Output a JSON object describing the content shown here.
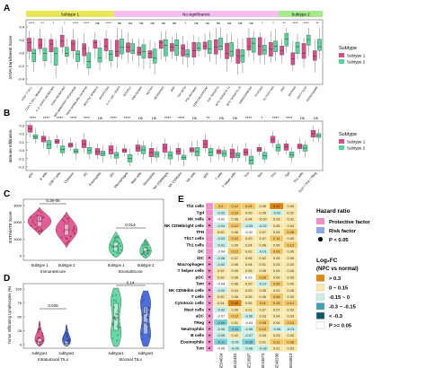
{
  "panels": {
    "A": {
      "label": "A",
      "ylabel": "GSVA Enrichment Score",
      "yticks": [
        "0.4",
        "0.2",
        "0.0",
        "-0.2",
        "-0.4"
      ],
      "bands": [
        "Subtype 1",
        "No significance",
        "Subtype 2"
      ],
      "band_colors": [
        "#e8e857",
        "#f4bef0",
        "#a7ea8e"
      ],
      "sig": [
        "****",
        "**",
        "*",
        "*",
        "****",
        "****",
        "ns",
        "****",
        "ns",
        "ns",
        "ns",
        "ns",
        "ns",
        "ns",
        "*",
        "ns",
        "ns",
        "ns",
        "ns",
        "ns",
        "ns",
        "*",
        "*",
        "**",
        "****",
        "****",
        "**"
      ],
      "categories": [
        "CD8+ T CELL",
        "CD4+ T CELL MEMORY",
        "IL-2 / STAT5 SIGNALING",
        "KRAS SIGNALING",
        "INFLAMMATORY RESPONSE",
        "TNFA SIGNALING VIA NFKB",
        "MITOTIC SPINDLE",
        "APOPTOSIS",
        "IL-6 / JAK / STAT3",
        "MTORC1",
        "DNA REPAIR",
        "NOTCH",
        "HEDGEHOG",
        "WNT",
        "TGF-BETA",
        "P53 PATHWAY",
        "G2M CHECKPOINT",
        "E2F TARGETS",
        "MYC TARGETS V1",
        "MYC TARGETS V2",
        "ANGIOGENESIS",
        "HYPOXIA",
        "GLYCOLYSIS",
        "EMT",
        "OXPHOS",
        "FATTY ACID",
        "PEROXISOME"
      ],
      "legend_title": "Subtype",
      "legend": [
        "Subtype 1",
        "Subtype 2"
      ]
    },
    "B": {
      "label": "B",
      "ylabel": "Immune Infiltration",
      "yticks": [
        "0.3",
        "0.2",
        "0.1",
        "0.0",
        "-0.1",
        "-0.2"
      ],
      "sig": [
        "****",
        "****",
        "****",
        "****",
        "****",
        "ns",
        "****",
        "****",
        "ns",
        "ns",
        "****",
        "****",
        "ns",
        "**",
        "ns",
        "ns",
        "****",
        "*",
        "****",
        "****",
        "ns",
        "ns"
      ],
      "categories": [
        "aDC",
        "B cells",
        "CD8 T cells",
        "Cytotoxic",
        "DC",
        "Eosinophils",
        "iDC",
        "Macrophages",
        "Mast cells",
        "Neutrophils",
        "NK CD56bright",
        "NK CD56dim",
        "NK cells",
        "pDC",
        "T cells",
        "T helper cells",
        "Tcm",
        "Tem",
        "TFH",
        "Tgd",
        "Th1 cells",
        "Th17 / Th2 / TReg"
      ],
      "legend_title": "Subtype",
      "legend": [
        "Subtype 1",
        "Subtype 2"
      ]
    },
    "C": {
      "label": "C",
      "ylabel": "ESTIMATE Score",
      "yticks": [
        "3000",
        "2000",
        "1000",
        "0"
      ],
      "pvals": [
        "5.3e-06",
        "0.014"
      ],
      "xticks": [
        "Subtype 1",
        "Subtype 2",
        "Subtype 1",
        "Subtype 2"
      ],
      "groups": [
        "ImmuneScore",
        "StromalScore"
      ]
    },
    "D": {
      "label": "D",
      "ylabel": "Tumor Infiltrating Lymphocytes (%)",
      "yticks": [
        "100",
        "75",
        "50",
        "25",
        "0"
      ],
      "pvals": [
        "0.025",
        "0.14"
      ],
      "xticks": [
        "subtype1",
        "subtype2",
        "subtype1",
        "subtype2"
      ],
      "groups": [
        "Intratumoral TILs",
        "Stromal TILs"
      ]
    },
    "E": {
      "label": "E",
      "rows": [
        "Th2 cells",
        "Tgd",
        "NK cells",
        "NK CD56bright cells",
        "TFH",
        "Th17 cells",
        "Th1 cells",
        "DC",
        "iDC",
        "Macrophages",
        "T helper cells",
        "pDC",
        "Tem",
        "NK CD56dim cells",
        "T cells",
        "Cytotoxic cells",
        "Mast cells",
        "aDC",
        "TReg",
        "Neutrophils",
        "B cells",
        "Eosinophils",
        "Tcm"
      ],
      "row_hr_color": [
        "#f08ec6",
        "#f08ec6",
        "#f08ec6",
        "#f08ec6",
        "#f08ec6",
        "#f08ec6",
        "#f08ec6",
        "#f08ec6",
        "#f08ec6",
        "#f08ec6",
        "#f08ec6",
        "#f08ec6",
        "#f08ec6",
        "#f08ec6",
        "#f08ec6",
        "#f08ec6",
        "#f08ec6",
        "#f08ec6",
        "#f08ec6",
        "#f08ec6",
        "#f08ec6",
        "#f08ec6",
        "#f08ec6"
      ],
      "row_hr_sig": [
        false,
        false,
        true,
        true,
        false,
        false,
        false,
        false,
        true,
        true,
        true,
        true,
        true,
        true,
        true,
        true,
        true,
        true,
        true,
        true,
        true,
        true,
        true
      ],
      "cols": [
        "GSE64634",
        "GSE12452",
        "GSE13597",
        "GSE34573",
        "GSE40290",
        "GSE53819"
      ],
      "cells": [
        [
          "0.2",
          "0.12",
          "0.24",
          "0.05",
          "0.41",
          "0.05"
        ],
        [
          "-0.03",
          "0.10",
          "0.00",
          "0.06",
          "-0.02",
          "0.02"
        ],
        [
          "-0.02",
          "0.06",
          "0.04",
          "-0.00",
          "0.03",
          "0.02"
        ],
        [
          "-0.04",
          "0.12",
          "-0.03",
          "-0.02",
          "0.06",
          "0.04"
        ],
        [
          "0.00",
          "0.06",
          "-0.02",
          "0.07",
          "0.04",
          "0.08"
        ],
        [
          "-0.03",
          "0.10",
          "0.00",
          "0.07",
          "0.14",
          "0.05"
        ],
        [
          "-0.01",
          "0.06",
          "0.04",
          "0.06",
          "0.05",
          "0.13"
        ],
        [
          "-0.04",
          "0.12",
          "0.02",
          "-0.01",
          "0.09",
          "0.05"
        ],
        [
          "-0.06",
          "0.07",
          "0.06",
          "0.02",
          "0.05",
          "0.00"
        ],
        [
          "-0.02",
          "0.06",
          "0.04",
          "0.01",
          "0.03",
          "0.00"
        ],
        [
          "0.02",
          "0.05",
          "0.05",
          "0.05",
          "0.04",
          "0.06"
        ],
        [
          "0.00",
          "0.06",
          "0.03",
          "0.09",
          "0.06",
          "0.05"
        ],
        [
          "-0.04",
          "0.06",
          "0.00",
          "-0.07",
          "0.09",
          "0.06"
        ],
        [
          "-0.02",
          "0.04",
          "0.00",
          "0.05",
          "0.02",
          "0.06"
        ],
        [
          "0.00",
          "0.06",
          "0.05",
          "0.06",
          "0.08",
          "0.05"
        ],
        [
          "0.04",
          "0.34",
          "0.06",
          "0.11",
          "0.15",
          "0.14"
        ],
        [
          "-0.02",
          "0.06",
          "0.01",
          "0.07",
          "0.07",
          "0.03"
        ],
        [
          "-0.07",
          "0.12",
          "-0.06",
          "0.03",
          "0.04",
          "0.03"
        ],
        [
          "-0.09",
          "0.01",
          "-0.03",
          "0.08",
          "0.06",
          "0.14"
        ],
        [
          "-0.06",
          "-0.11",
          "-0.06",
          "0.10",
          "-0.06",
          "-0.01"
        ],
        [
          "-0.05",
          "0.02",
          "-0.07",
          "0.03",
          "0.03",
          "0.05"
        ],
        [
          "-0.11",
          "-0.05",
          "-0.09",
          "0.01",
          "0.11",
          "0.08"
        ],
        [
          "-0.05",
          "-0.05",
          "-0.06",
          "-0.08",
          "0.01",
          "0.03"
        ]
      ],
      "legend": {
        "hr_title": "Hazard ratio",
        "hr_items": [
          {
            "label": "Protective factor",
            "color": "#f08ec6"
          },
          {
            "label": "Risk factor",
            "color": "#8fa9e8"
          },
          {
            "label": "P < 0.05",
            "color": "#111111"
          }
        ],
        "fc_title": "Log₂FC",
        "fc_subtitle": "(NPC vs normal)",
        "fc_items": [
          {
            "label": "> 0.3",
            "color": "#e0850d"
          },
          {
            "label": "0 ~ 0.15",
            "color": "#fbe8a8"
          },
          {
            "label": "-0.15 ~ 0",
            "color": "#c8efe8"
          },
          {
            "label": "-0.3 ~ -0.15",
            "color": "#3f9fb5"
          },
          {
            "label": "< -0.3",
            "color": "#0f5869"
          },
          {
            "label": "P >= 0.05",
            "color": "#ffffff"
          }
        ]
      }
    }
  },
  "colors": {
    "subtype1": "#e04a89",
    "subtype2": "#55d69a",
    "accentPink": "#e04a89",
    "accentGreen": "#55d69a"
  }
}
